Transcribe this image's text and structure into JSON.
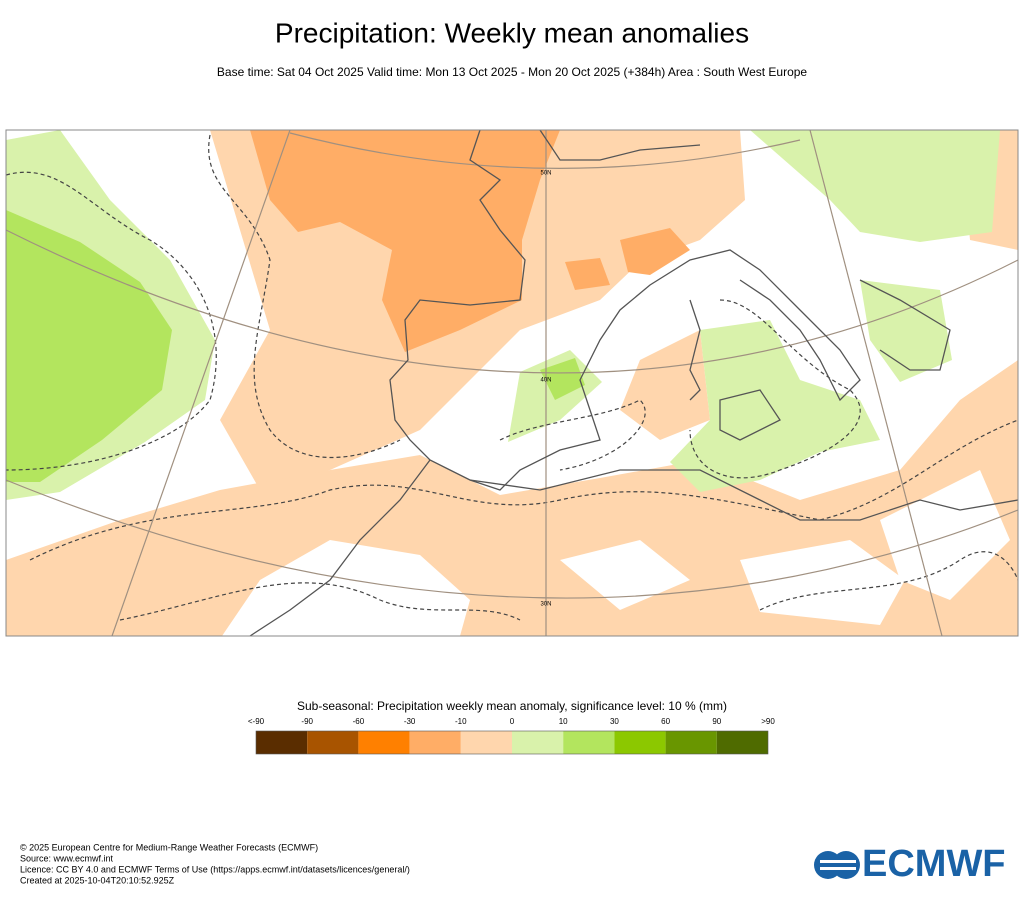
{
  "header": {
    "title": "Precipitation: Weekly mean anomalies",
    "subtitle": "Base time: Sat 04 Oct 2025 Valid time: Mon 13 Oct 2025 - Mon 20 Oct 2025 (+384h) Area : South West Europe"
  },
  "map": {
    "lat_labels": [
      "50N",
      "40N",
      "30N"
    ]
  },
  "colorbar": {
    "title": "Sub-seasonal: Precipitation weekly mean anomaly, significance level: 10 % (mm)",
    "labels": [
      "<-90",
      "-90",
      "-60",
      "-30",
      "-10",
      "0",
      "10",
      "30",
      "60",
      "90",
      ">90"
    ],
    "colors": [
      "#5a2d00",
      "#a85400",
      "#ff8000",
      "#ffad66",
      "#ffd6ad",
      "#d9f2ab",
      "#b3e55e",
      "#8cc800",
      "#699600",
      "#4f6b00"
    ]
  },
  "footer": {
    "lines": [
      "© 2025 European Centre for Medium-Range Weather Forecasts (ECMWF)",
      "Source: www.ecmwf.int",
      "Licence: CC BY 4.0 and ECMWF Terms of Use (https://apps.ecmwf.int/datasets/licences/general/)",
      "Created at 2025-10-04T20:10:52.925Z"
    ],
    "logo": "ECMWF"
  }
}
